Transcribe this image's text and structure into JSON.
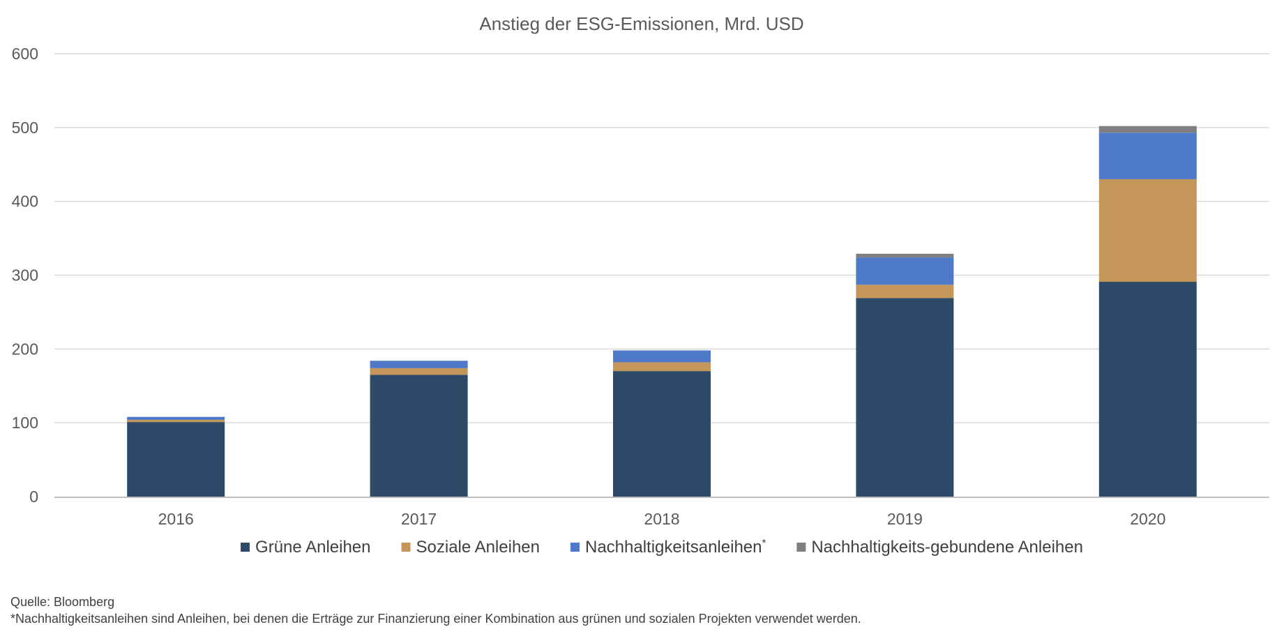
{
  "chart_data": {
    "type": "bar",
    "stacked": true,
    "title": "Anstieg der ESG-Emissionen, Mrd. USD",
    "categories": [
      "2016",
      "2017",
      "2018",
      "2019",
      "2020"
    ],
    "series": [
      {
        "name": "Grüne Anleihen",
        "color": "#2E4A68",
        "values": [
          101,
          165,
          170,
          269,
          291
        ]
      },
      {
        "name": "Soziale Anleihen",
        "color": "#C4965A",
        "values": [
          3,
          9,
          12,
          18,
          139
        ]
      },
      {
        "name": "Nachhaltigkeitsanleihen",
        "name_suffix": "*",
        "color": "#4E78C8",
        "values": [
          4,
          10,
          16,
          37,
          63
        ]
      },
      {
        "name": "Nachhaltigkeits-gebundene Anleihen",
        "color": "#7F7F7F",
        "values": [
          0,
          0,
          0,
          5,
          9
        ]
      }
    ],
    "ylim": [
      0,
      600
    ],
    "yticks": [
      0,
      100,
      200,
      300,
      400,
      500,
      600
    ],
    "grid": true,
    "legend_position": "bottom"
  },
  "footnotes": {
    "source": "Quelle: Bloomberg",
    "note": "*Nachhaltigkeitsanleihen sind Anleihen, bei denen die Erträge zur Finanzierung einer Kombination aus grünen und sozialen Projekten verwendet werden."
  }
}
